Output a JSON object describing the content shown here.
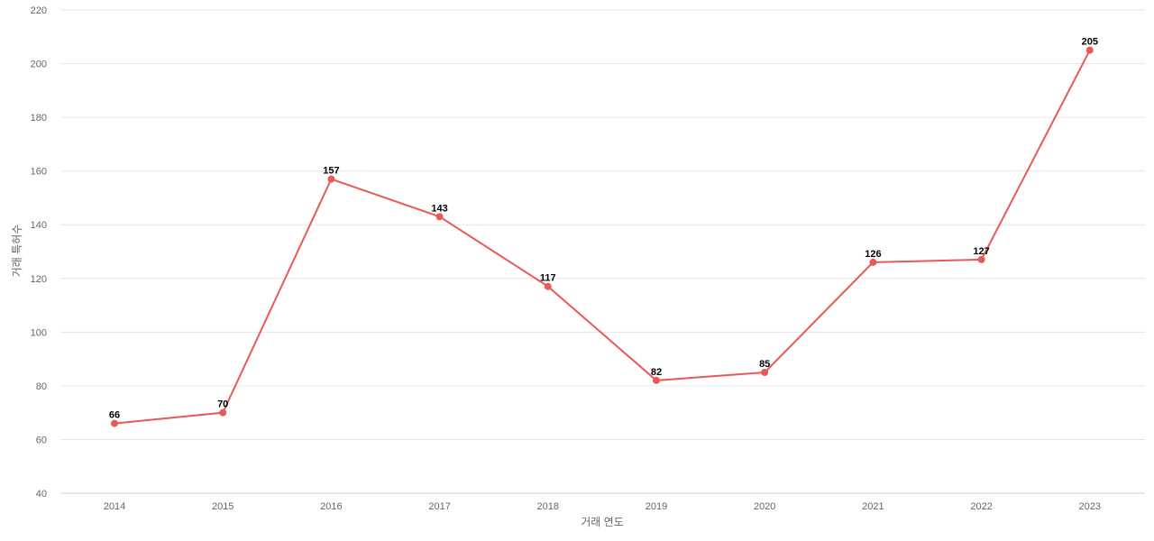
{
  "chart_data": {
    "type": "line",
    "title": "",
    "xlabel": "거래 연도",
    "ylabel": "거래 특허수",
    "x": [
      "2014",
      "2015",
      "2016",
      "2017",
      "2018",
      "2019",
      "2020",
      "2021",
      "2022",
      "2023"
    ],
    "series": [
      {
        "values": [
          66,
          70,
          157,
          143,
          117,
          82,
          85,
          126,
          127,
          205
        ],
        "color": "#e85a5a"
      }
    ],
    "ylim": [
      40,
      220
    ],
    "yticks": [
      40,
      60,
      80,
      100,
      120,
      140,
      160,
      180,
      200,
      220
    ],
    "grid": true,
    "legend": "none",
    "data_labels": true
  }
}
